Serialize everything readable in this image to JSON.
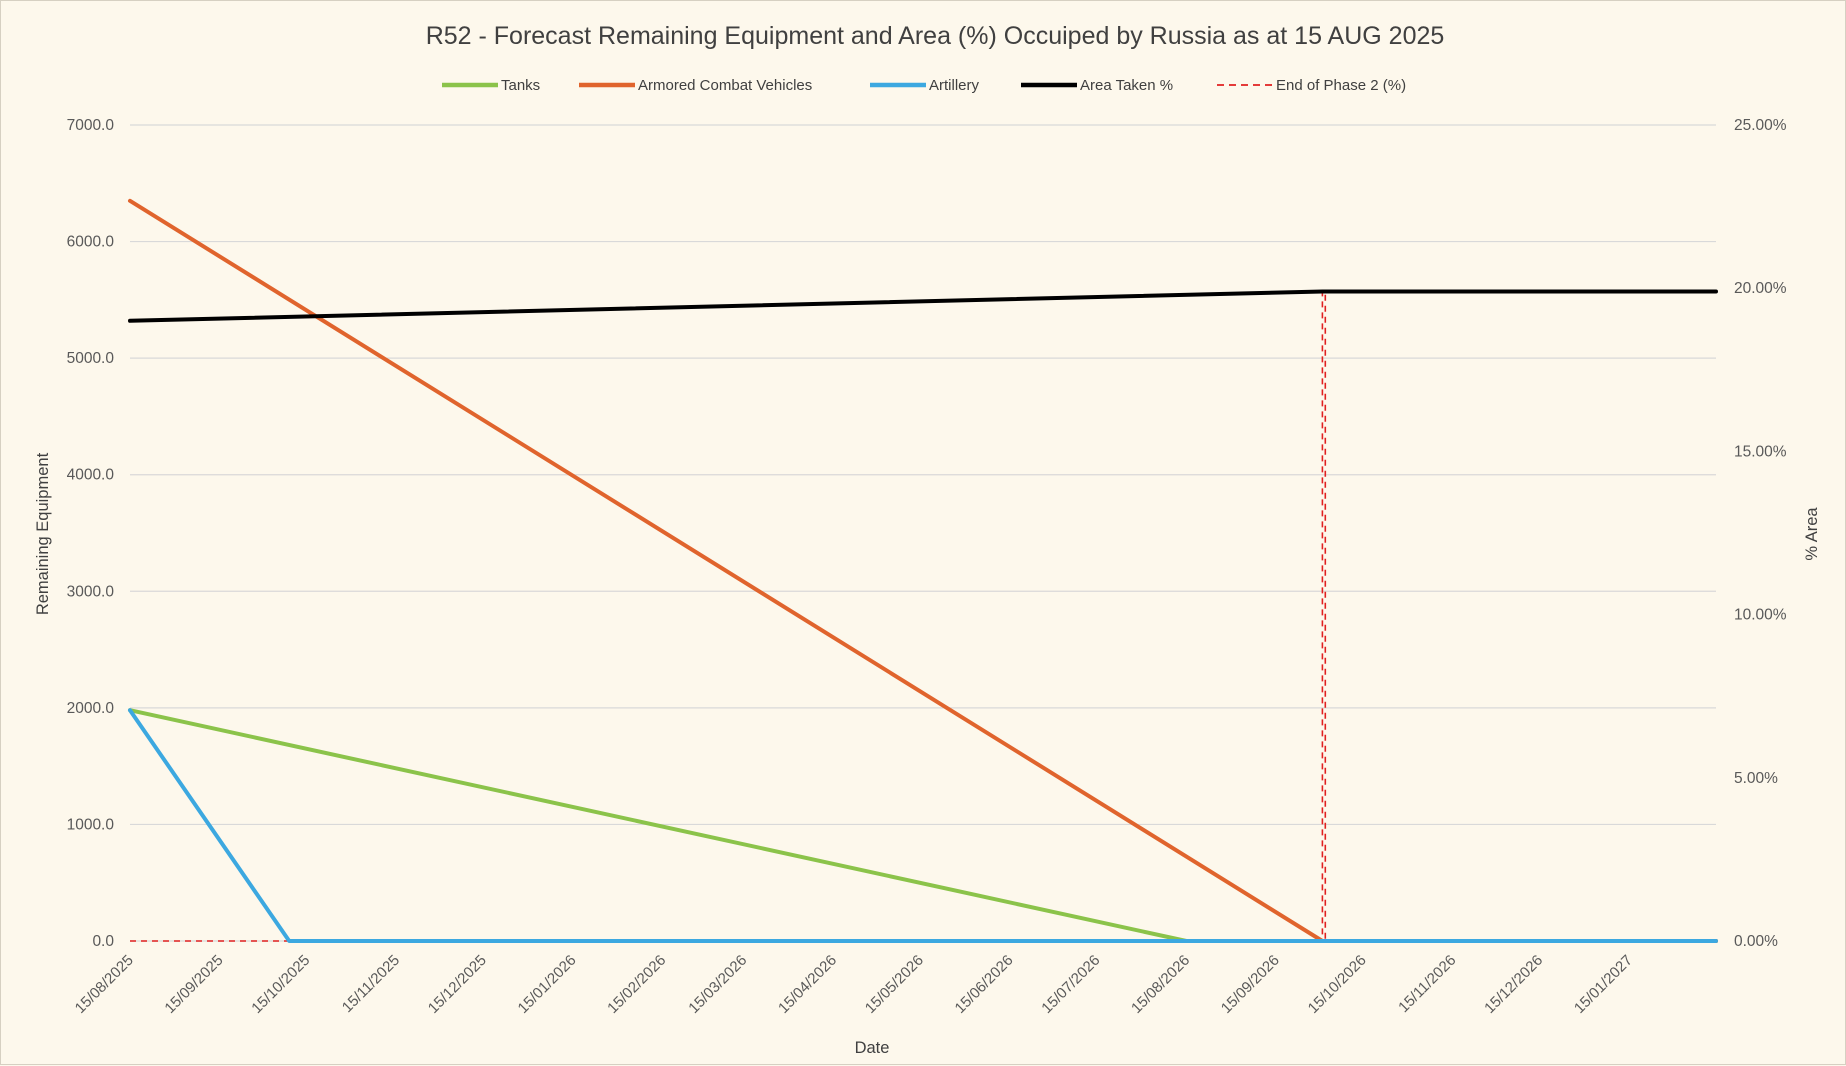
{
  "chart_data": {
    "type": "line",
    "title": "R52 - Forecast Remaining Equipment and Area (%) Occuiped by Russia as at 15 AUG 2025",
    "xlabel": "Date",
    "ylabel": "Remaining Equipment",
    "y2label": "% Area",
    "ylim": [
      0,
      7000
    ],
    "y2lim": [
      0,
      25
    ],
    "xlim": [
      "2025-08-15",
      "2027-02-14"
    ],
    "yticks": [
      "0.0",
      "1000.0",
      "2000.0",
      "3000.0",
      "4000.0",
      "5000.0",
      "6000.0",
      "7000.0"
    ],
    "y2ticks": [
      "0.00%",
      "5.00%",
      "10.00%",
      "15.00%",
      "20.00%",
      "25.00%"
    ],
    "xticks": [
      "15/08/2025",
      "15/09/2025",
      "15/10/2025",
      "15/11/2025",
      "15/12/2025",
      "15/01/2026",
      "15/02/2026",
      "15/03/2026",
      "15/04/2026",
      "15/05/2026",
      "15/06/2026",
      "15/07/2026",
      "15/08/2026",
      "15/09/2026",
      "15/10/2026",
      "15/11/2026",
      "15/12/2026",
      "15/01/2027"
    ],
    "grid": true,
    "legend": "top",
    "series": [
      {
        "name": "Tanks",
        "color": "#8BC34A",
        "axis": "left",
        "dash": false,
        "x": [
          "2025-08-15",
          "2026-08-15",
          "2027-02-14"
        ],
        "y": [
          1980,
          0,
          0
        ]
      },
      {
        "name": "Armored Combat Vehicles",
        "color": "#E0642D",
        "axis": "left",
        "dash": false,
        "x": [
          "2025-08-15",
          "2026-10-01",
          "2027-02-14"
        ],
        "y": [
          6350,
          0,
          0
        ]
      },
      {
        "name": "Artillery",
        "color": "#3CA8E0",
        "axis": "left",
        "dash": false,
        "x": [
          "2025-08-15",
          "2025-10-09",
          "2027-02-14"
        ],
        "y": [
          1980,
          0,
          0
        ]
      },
      {
        "name": "Area Taken %",
        "color": "#000000",
        "axis": "right",
        "dash": false,
        "x": [
          "2025-08-15",
          "2026-10-01",
          "2027-02-14"
        ],
        "y": [
          19.0,
          19.9,
          19.9
        ]
      },
      {
        "name": "End of Phase 2 (%)",
        "color": "#E02020",
        "axis": "right",
        "dash": true,
        "x": [
          "2025-08-15",
          "2026-10-01",
          "2026-10-01",
          "2026-10-02",
          "2026-10-02",
          "2027-02-14"
        ],
        "y": [
          0,
          0,
          19.9,
          19.9,
          0,
          0
        ]
      }
    ]
  }
}
